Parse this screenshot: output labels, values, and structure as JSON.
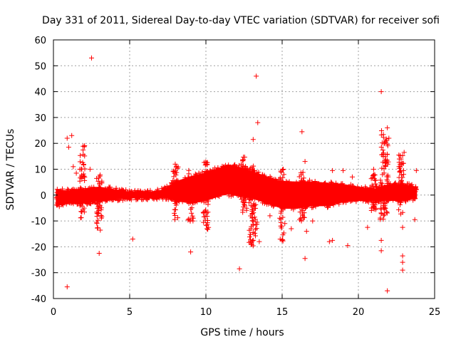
{
  "chart_data": {
    "type": "scatter",
    "title": "Day 331 of 2011, Sidereal Day-to-day VTEC variation (SDTVAR) for receiver sofi",
    "xlabel": "GPS time / hours",
    "ylabel": "SDTVAR / TECUs",
    "xlim": [
      0,
      25
    ],
    "ylim": [
      -40,
      60
    ],
    "xticks": [
      0,
      5,
      10,
      15,
      20,
      25
    ],
    "yticks": [
      -40,
      -30,
      -20,
      -10,
      0,
      10,
      20,
      30,
      40,
      50,
      60
    ],
    "grid": true,
    "marker": "+",
    "color": "#ff0000",
    "band": {
      "x": [
        0.2,
        1.0,
        2.0,
        3.0,
        4.0,
        5.0,
        6.0,
        7.0,
        7.5,
        8.0,
        9.0,
        10.0,
        11.0,
        11.5,
        12.0,
        13.0,
        14.0,
        15.0,
        16.0,
        17.0,
        18.0,
        19.0,
        20.0,
        21.0,
        22.0,
        23.0,
        23.8
      ],
      "upper": [
        2,
        1.5,
        2,
        3,
        2,
        1,
        1,
        1.5,
        3,
        5,
        7,
        8.5,
        10.5,
        11.5,
        11,
        9,
        7,
        5,
        5,
        5,
        4.5,
        4,
        3,
        2,
        4,
        4,
        3
      ],
      "lower": [
        -4,
        -3,
        -3,
        -2,
        -1.5,
        -1,
        -1,
        -1,
        -1,
        -2,
        -3,
        -2,
        0,
        0.5,
        0,
        -1,
        -3,
        -5,
        -5,
        -4,
        -4,
        -2.5,
        -2,
        -2,
        -2,
        -2,
        -1
      ]
    },
    "spikes": [
      {
        "x": 1.9,
        "ymin": -9,
        "ymax": 22
      },
      {
        "x": 3.0,
        "ymin": -14,
        "ymax": 8
      },
      {
        "x": 8.0,
        "ymin": -10,
        "ymax": 12
      },
      {
        "x": 9.0,
        "ymin": -11,
        "ymax": 10
      },
      {
        "x": 10.0,
        "ymin": -15,
        "ymax": 13
      },
      {
        "x": 12.5,
        "ymin": -10,
        "ymax": 15
      },
      {
        "x": 13.0,
        "ymin": -20,
        "ymax": 15
      },
      {
        "x": 13.2,
        "ymin": -17,
        "ymax": 10
      },
      {
        "x": 15.0,
        "ymin": -18,
        "ymax": 10
      },
      {
        "x": 16.3,
        "ymin": -10,
        "ymax": 9
      },
      {
        "x": 21.0,
        "ymin": -7,
        "ymax": 8
      },
      {
        "x": 21.6,
        "ymin": -11,
        "ymax": 25
      },
      {
        "x": 21.8,
        "ymin": -10,
        "ymax": 24
      },
      {
        "x": 22.8,
        "ymin": -8,
        "ymax": 16
      }
    ],
    "outliers": [
      [
        0.9,
        -35.5
      ],
      [
        0.9,
        22
      ],
      [
        1.2,
        23
      ],
      [
        1.0,
        18.5
      ],
      [
        1.3,
        11
      ],
      [
        1.5,
        8.5
      ],
      [
        2.5,
        53
      ],
      [
        2.4,
        10
      ],
      [
        3.0,
        -22.5
      ],
      [
        5.2,
        -17
      ],
      [
        9.0,
        -22
      ],
      [
        10.0,
        12
      ],
      [
        12.2,
        -28.5
      ],
      [
        13.1,
        21.5
      ],
      [
        13.3,
        46
      ],
      [
        13.4,
        28
      ],
      [
        13.5,
        -18
      ],
      [
        14.2,
        -8
      ],
      [
        15.6,
        -13
      ],
      [
        16.3,
        24.5
      ],
      [
        16.5,
        13
      ],
      [
        16.5,
        -24.5
      ],
      [
        16.6,
        -14
      ],
      [
        17.0,
        -10
      ],
      [
        18.1,
        -18
      ],
      [
        18.3,
        -17.5
      ],
      [
        18.3,
        9.5
      ],
      [
        19.3,
        -19.5
      ],
      [
        19.0,
        9.5
      ],
      [
        19.6,
        7
      ],
      [
        20.6,
        -12.5
      ],
      [
        21.0,
        10
      ],
      [
        21.5,
        40
      ],
      [
        21.5,
        -17.5
      ],
      [
        21.5,
        -21.5
      ],
      [
        21.9,
        -37
      ],
      [
        21.9,
        26
      ],
      [
        22.0,
        22
      ],
      [
        22.9,
        -12.5
      ],
      [
        22.9,
        -23.5
      ],
      [
        22.9,
        -26
      ],
      [
        22.9,
        -29
      ],
      [
        23.0,
        16.5
      ],
      [
        23.7,
        -9.5
      ],
      [
        23.8,
        9.5
      ]
    ]
  }
}
